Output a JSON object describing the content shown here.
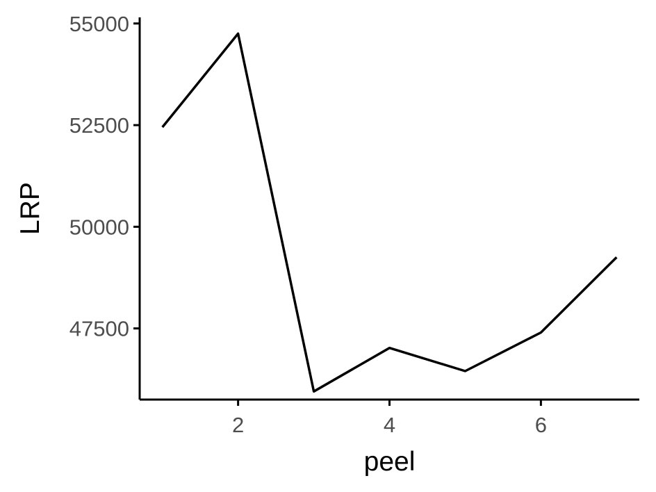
{
  "chart_data": {
    "type": "line",
    "title": "",
    "xlabel": "peel",
    "ylabel": "LRP",
    "xlim": [
      0.7,
      7.3
    ],
    "ylim": [
      45750,
      55150
    ],
    "xticks": [
      2,
      4,
      6
    ],
    "yticks": [
      47500,
      50000,
      52500,
      55000
    ],
    "grid": false,
    "series": [
      {
        "x": [
          1,
          2,
          3,
          4,
          5,
          6,
          7
        ],
        "y": [
          52450,
          54750,
          45950,
          47020,
          46450,
          47400,
          49250
        ],
        "color": "#000000"
      }
    ]
  }
}
